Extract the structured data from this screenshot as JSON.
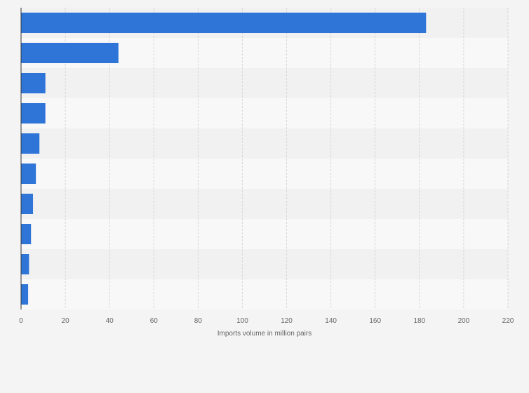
{
  "chart_data": {
    "type": "bar",
    "orientation": "horizontal",
    "categories": [
      "",
      "",
      "",
      "",
      "",
      "",
      "",
      "",
      "",
      ""
    ],
    "values": [
      183,
      44,
      11,
      11,
      8.3,
      6.7,
      5.4,
      4.5,
      3.6,
      3.2
    ],
    "title": "",
    "xlabel": "Imports volume in million pairs",
    "ylabel": "",
    "xlim": [
      0,
      220
    ],
    "xticks": [
      0,
      20,
      40,
      60,
      80,
      100,
      120,
      140,
      160,
      180,
      200,
      220
    ],
    "grid": "vertical dashed",
    "legend": "none",
    "colors": {
      "bar": "#2f75d8",
      "band_light": "#f8f8f8",
      "band_dark": "#f1f1f1",
      "grid": "#d6d6d6",
      "axis": "#333333",
      "tick_text": "#666666"
    }
  }
}
